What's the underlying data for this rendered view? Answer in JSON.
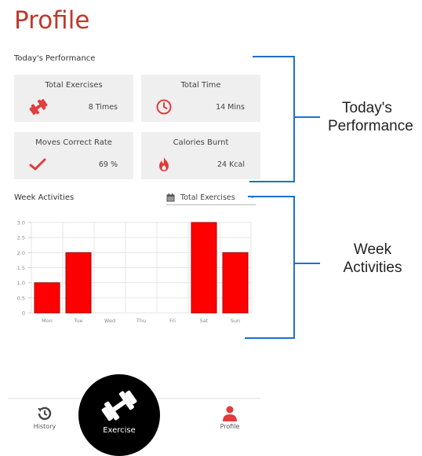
{
  "header": {
    "title": "Profile"
  },
  "today": {
    "label": "Today's Performance",
    "cards": [
      {
        "title": "Total Exercises",
        "value": "8 Times",
        "icon": "dumbbell-icon"
      },
      {
        "title": "Total Time",
        "value": "14 Mins",
        "icon": "clock-icon"
      },
      {
        "title": "Moves Correct Rate",
        "value": "69 %",
        "icon": "checkmark-icon"
      },
      {
        "title": "Calories Burnt",
        "value": "24 Kcal",
        "icon": "flame-icon"
      }
    ]
  },
  "week": {
    "label": "Week Activities",
    "dropdown": {
      "selected": "Total Exercises",
      "icon": "calendar-icon"
    }
  },
  "chart_data": {
    "type": "bar",
    "categories": [
      "Mon",
      "Tue",
      "Wed",
      "Thu",
      "Fri",
      "Sat",
      "Sun"
    ],
    "values": [
      1,
      2,
      0,
      0,
      0,
      3,
      2
    ],
    "ylim": [
      0,
      3
    ],
    "yticks": [
      "0",
      "0.5",
      "1.0",
      "1.5",
      "2.0",
      "2.5",
      "3.0"
    ],
    "grid": true,
    "bar_color": "#ff0000",
    "bar_border": "#a50000"
  },
  "annotations": {
    "today_line1": "Today's",
    "today_line2": "Performance",
    "week_line1": "Week",
    "week_line2": "Activities"
  },
  "nav": {
    "history": "History",
    "exercise": "Exercise",
    "profile": "Profile"
  },
  "colors": {
    "accent": "#e03c3c",
    "title": "#c0392b",
    "annotation_line": "#1f6fd1"
  }
}
